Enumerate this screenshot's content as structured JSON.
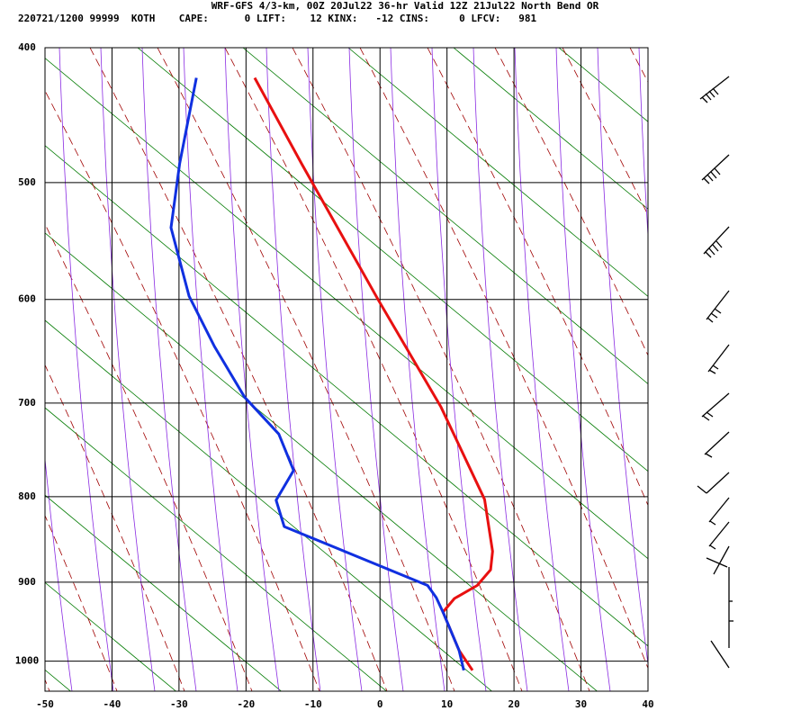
{
  "chart_data": {
    "type": "skewt",
    "title": "WRF-GFS 4/3-km, 00Z 20Jul22 36-hr Valid 12Z 21Jul22 North Bend OR",
    "subtitle": "220721/1200 99999  KOTH    CAPE:      0 LIFT:    12 KINX:   -12 CINS:     0 LFCV:   981",
    "xlim": [
      -50,
      40
    ],
    "xticks": [
      -50,
      -40,
      -30,
      -20,
      -10,
      0,
      10,
      20,
      30,
      40
    ],
    "ylim": [
      400,
      1040
    ],
    "yticks": [
      400,
      500,
      600,
      700,
      800,
      900,
      1000
    ],
    "grid": true,
    "series": [
      {
        "color": "#e81010",
        "x": [
          -18.7,
          -11.7,
          -0.3,
          9.1,
          15.6,
          16.8,
          16.5,
          14.5,
          11.1,
          9.4,
          11.8,
          13.8
        ],
        "values": [
          421,
          485,
          600,
          704,
          803,
          863,
          885,
          904,
          920,
          937,
          986,
          1012
        ]
      },
      {
        "color": "#1030e0",
        "x": [
          -27.4,
          -29.9,
          -31.2,
          -28.5,
          -24.7,
          -20.2,
          -15.1,
          -12.9,
          -15.5,
          -14.3,
          7.1,
          8.4,
          9.4,
          11.8,
          12.5
        ],
        "values": [
          421,
          485,
          537,
          597,
          644,
          694,
          732,
          771,
          804,
          834,
          904,
          919,
          937,
          986,
          1012
        ]
      }
    ]
  }
}
